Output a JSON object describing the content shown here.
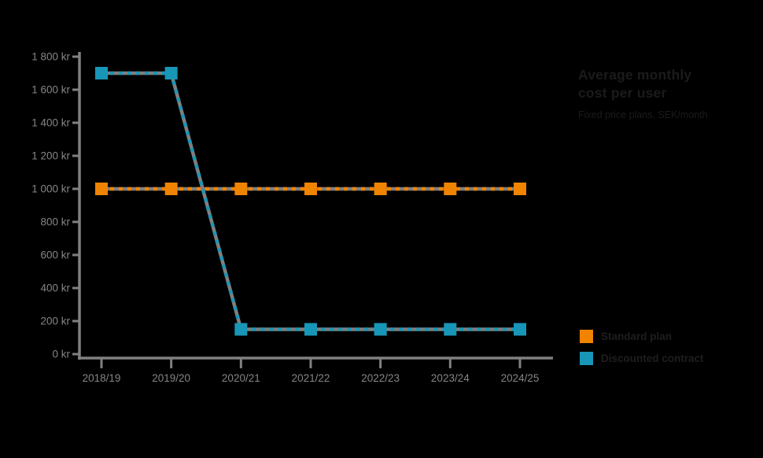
{
  "background_color": "#000000",
  "title": {
    "line1": "Average monthly",
    "line2": "cost per user",
    "subtitle": "Fixed price plans, SEK/month"
  },
  "legend": {
    "position": "right-bottom",
    "items": [
      {
        "label": "Standard plan",
        "color": "#F08300"
      },
      {
        "label": "Discounted contract",
        "color": "#1896B7"
      }
    ]
  },
  "colors": {
    "axis": "#808080",
    "axis_label": "#858585",
    "title_text": "#1b1b1b",
    "orange_series": "#F08300",
    "blue_series": "#1896B7",
    "line_underlay": "#7f7f7f"
  },
  "chart_data": {
    "type": "line",
    "title": "Average monthly cost per user",
    "subtitle": "Fixed price plans, SEK/month",
    "xlabel": "",
    "ylabel": "",
    "categories": [
      "2018/19",
      "2019/20",
      "2020/21",
      "2021/22",
      "2022/23",
      "2023/24",
      "2024/25"
    ],
    "series": [
      {
        "name": "Standard plan",
        "color": "#F08300",
        "values": [
          1000,
          1000,
          1000,
          1000,
          1000,
          1000,
          1000
        ]
      },
      {
        "name": "Discounted contract",
        "color": "#1896B7",
        "values": [
          1700,
          1700,
          150,
          150,
          150,
          150,
          150
        ]
      }
    ],
    "ylim": [
      0,
      1800
    ],
    "ytick_step": 200,
    "y_tick_values": [
      1800,
      1600,
      1400,
      1200,
      1000,
      800,
      600,
      400,
      200,
      0
    ],
    "y_tick_labels": [
      "1 800 kr",
      "1 600 kr",
      "1 400 kr",
      "1 200 kr",
      "1 000 kr",
      "800 kr",
      "600 kr",
      "400 kr",
      "200 kr",
      "0 kr"
    ],
    "grid": false,
    "line_style": "colored dashes over solid gray line",
    "marker": "square",
    "legend_position": "right-bottom"
  }
}
